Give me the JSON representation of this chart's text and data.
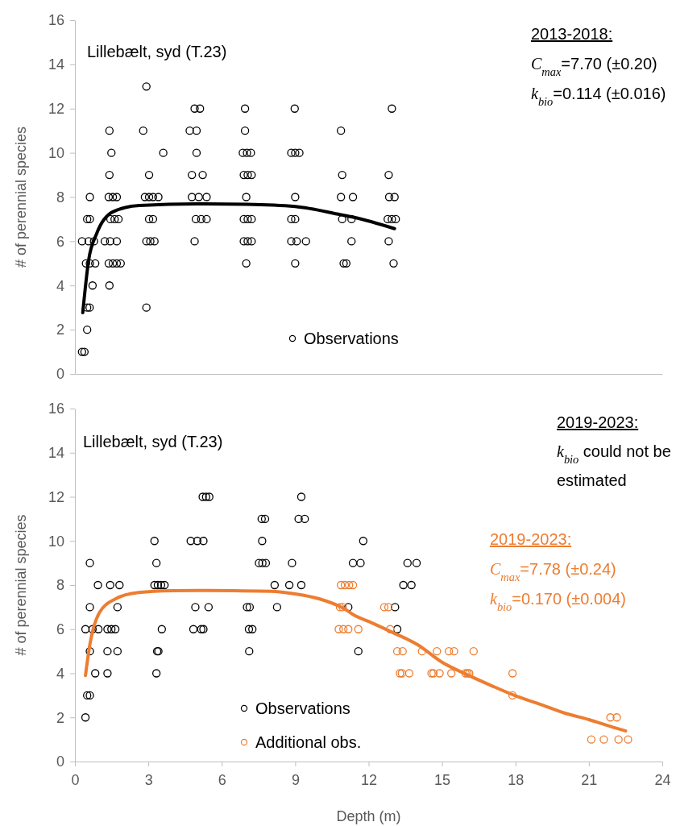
{
  "chart_data": [
    {
      "type": "scatter",
      "ylabel": "# of perennial species",
      "xlim": [
        0,
        24
      ],
      "xticks": [
        0,
        3,
        6,
        9,
        12,
        15,
        18,
        21,
        24
      ],
      "ylim": [
        0,
        16
      ],
      "yticks": [
        0,
        2,
        4,
        6,
        8,
        10,
        12,
        14,
        16
      ],
      "tick_labels": "y",
      "grid": false,
      "legend": "bottom",
      "annotations": [
        "Lillebælt, syd (T.23)",
        "2013-2018:",
        "C$_{max}$=7.70 (±0.20)",
        "k$_{bio}$=0.114 (±0.016)"
      ],
      "series": [
        {
          "name": "Observations",
          "marker": "circle",
          "color": "#000000",
          "x": [
            2.92,
            4.89,
            5.11,
            6.95,
            8.98,
            12.95,
            1.41,
            2.79,
            4.69,
            4.97,
            6.95,
            10.87,
            1.49,
            3.61,
            4.97,
            6.86,
            7.03,
            7.19,
            8.84,
            9.0,
            9.17,
            1.41,
            3.03,
            4.78,
            5.22,
            6.9,
            7.06,
            7.22,
            10.92,
            12.82,
            0.61,
            1.38,
            1.55,
            1.71,
            2.86,
            3.03,
            3.19,
            3.41,
            4.78,
            5.06,
            5.38,
            7.0,
            9.0,
            10.87,
            11.36,
            12.84,
            13.06,
            0.5,
            0.61,
            1.45,
            1.62,
            1.78,
            3.03,
            3.19,
            4.94,
            5.16,
            5.38,
            6.9,
            7.06,
            7.22,
            8.84,
            9.0,
            10.92,
            11.3,
            12.78,
            12.95,
            13.11,
            0.29,
            0.56,
            0.78,
            1.22,
            1.44,
            1.71,
            2.92,
            3.08,
            3.25,
            4.89,
            6.9,
            7.06,
            7.22,
            8.84,
            9.06,
            9.44,
            11.3,
            12.82,
            0.45,
            0.61,
            0.83,
            1.38,
            1.55,
            1.71,
            1.87,
            7.0,
            9.0,
            10.98,
            11.09,
            13.02,
            0.72,
            1.41,
            0.5,
            0.6,
            2.92,
            0.5,
            0.29,
            0.39
          ],
          "values": [
            13,
            12,
            12,
            12,
            12,
            12,
            11,
            11,
            11,
            11,
            11,
            11,
            10,
            10,
            10,
            10,
            10,
            10,
            10,
            10,
            10,
            9,
            9,
            9,
            9,
            9,
            9,
            9,
            9,
            9,
            8,
            8,
            8,
            8,
            8,
            8,
            8,
            8,
            8,
            8,
            8,
            8,
            8,
            8,
            8,
            8,
            8,
            7,
            7,
            7,
            7,
            7,
            7,
            7,
            7,
            7,
            7,
            7,
            7,
            7,
            7,
            7,
            7,
            7,
            7,
            7,
            7,
            6,
            6,
            6,
            6,
            6,
            6,
            6,
            6,
            6,
            6,
            6,
            6,
            6,
            6,
            6,
            6,
            6,
            6,
            5,
            5,
            5,
            5,
            5,
            5,
            5,
            5,
            5,
            5,
            5,
            5,
            4,
            4,
            3,
            3,
            3,
            2,
            1,
            1
          ]
        },
        {
          "type": "line",
          "marker": "none",
          "color": "#000000",
          "x": [
            0.32,
            0.56,
            0.89,
            1.55,
            2.63,
            5,
            7,
            9,
            10.86,
            11.41,
            13.06
          ],
          "values": [
            2.77,
            5.14,
            6.35,
            7.33,
            7.62,
            7.69,
            7.67,
            7.57,
            7.2,
            7.08,
            6.57
          ]
        }
      ]
    },
    {
      "type": "scatter",
      "xlabel": "Depth (m)",
      "ylabel": "# of perennial species",
      "xlim": [
        0,
        24
      ],
      "xticks": [
        0,
        3,
        6,
        9,
        12,
        15,
        18,
        21,
        24
      ],
      "ylim": [
        0,
        16
      ],
      "yticks": [
        0,
        2,
        4,
        6,
        8,
        10,
        12,
        14,
        16
      ],
      "grid": false,
      "legend": "bottom",
      "annotations": [
        "Lillebælt, syd (T.23)",
        "2019-2023:",
        "k$_{bio}$ could not be estimated",
        "2019-2023:",
        "C$_{max}$=7.78 (±0.24)",
        "k$_{bio}$=0.170 (±0.004)"
      ],
      "series": [
        {
          "name": "Observations",
          "marker": "circle",
          "color": "#000000",
          "x": [
            5.22,
            5.36,
            5.49,
            9.25,
            7.63,
            7.77,
            9.14,
            9.39,
            3.25,
            4.73,
            5.0,
            5.25,
            7.65,
            11.78,
            0.61,
            3.33,
            7.52,
            7.66,
            7.8,
            8.87,
            11.36,
            11.67,
            13.59,
            13.96,
            0.94,
            1.44,
            1.82,
            3.25,
            3.39,
            3.52,
            3.66,
            8.16,
            8.76,
            9.25,
            13.42,
            13.75,
            0.61,
            1.74,
            4.92,
            5.46,
            7.03,
            7.14,
            8.26,
            11.17,
            13.08,
            0.43,
            0.72,
            0.96,
            1.33,
            1.49,
            1.65,
            3.55,
            4.84,
            5.16,
            5.25,
            7.11,
            7.25,
            13.17,
            0.61,
            1.33,
            1.74,
            3.36,
            3.41,
            7.12,
            11.58,
            0.83,
            1.33,
            3.33,
            0.5,
            0.61,
            0.43
          ],
          "values": [
            12,
            12,
            12,
            12,
            11,
            11,
            11,
            11,
            10,
            10,
            10,
            10,
            10,
            10,
            9,
            9,
            9,
            9,
            9,
            9,
            9,
            9,
            9,
            9,
            8,
            8,
            8,
            8,
            8,
            8,
            8,
            8,
            8,
            8,
            8,
            8,
            7,
            7,
            7,
            7,
            7,
            7,
            7,
            7,
            7,
            6,
            6,
            6,
            6,
            6,
            6,
            6,
            6,
            6,
            6,
            6,
            6,
            6,
            5,
            5,
            5,
            5,
            5,
            5,
            5,
            4,
            4,
            4,
            3,
            3,
            2
          ]
        },
        {
          "name": "Additional obs.",
          "marker": "circle",
          "color": "#ed7d31",
          "x": [
            10.87,
            11.03,
            11.2,
            11.36,
            10.83,
            10.94,
            12.64,
            12.81,
            10.78,
            10.97,
            11.17,
            11.58,
            12.88,
            13.17,
            13.39,
            14.18,
            14.79,
            15.28,
            15.49,
            16.29,
            13.28,
            13.36,
            13.66,
            14.57,
            14.65,
            14.9,
            15.38,
            15.96,
            16.04,
            16.11,
            17.88,
            17.88,
            21.88,
            22.14,
            21.1,
            21.61,
            22.21,
            22.6
          ],
          "values": [
            8,
            8,
            8,
            8,
            7,
            7,
            7,
            7,
            6,
            6,
            6,
            6,
            6,
            5,
            5,
            5,
            5,
            5,
            5,
            5,
            4,
            4,
            4,
            4,
            4,
            4,
            4,
            4,
            4,
            4,
            4,
            3,
            2,
            2,
            1,
            1,
            1,
            1
          ]
        },
        {
          "type": "line",
          "marker": "none",
          "color": "#ed7d31",
          "x": [
            0.43,
            0.61,
            1.0,
            1.65,
            2.6,
            4,
            5,
            6.5,
            8,
            9,
            10,
            11,
            11.4,
            12,
            13,
            14,
            15,
            16,
            17,
            18,
            19,
            20,
            21,
            22,
            22.5
          ],
          "values": [
            3.9,
            5.3,
            6.75,
            7.37,
            7.66,
            7.74,
            7.75,
            7.74,
            7.72,
            7.6,
            7.37,
            6.93,
            6.64,
            6.35,
            5.84,
            5.3,
            4.5,
            3.95,
            3.45,
            2.98,
            2.6,
            2.2,
            1.9,
            1.55,
            1.39
          ]
        }
      ]
    }
  ]
}
